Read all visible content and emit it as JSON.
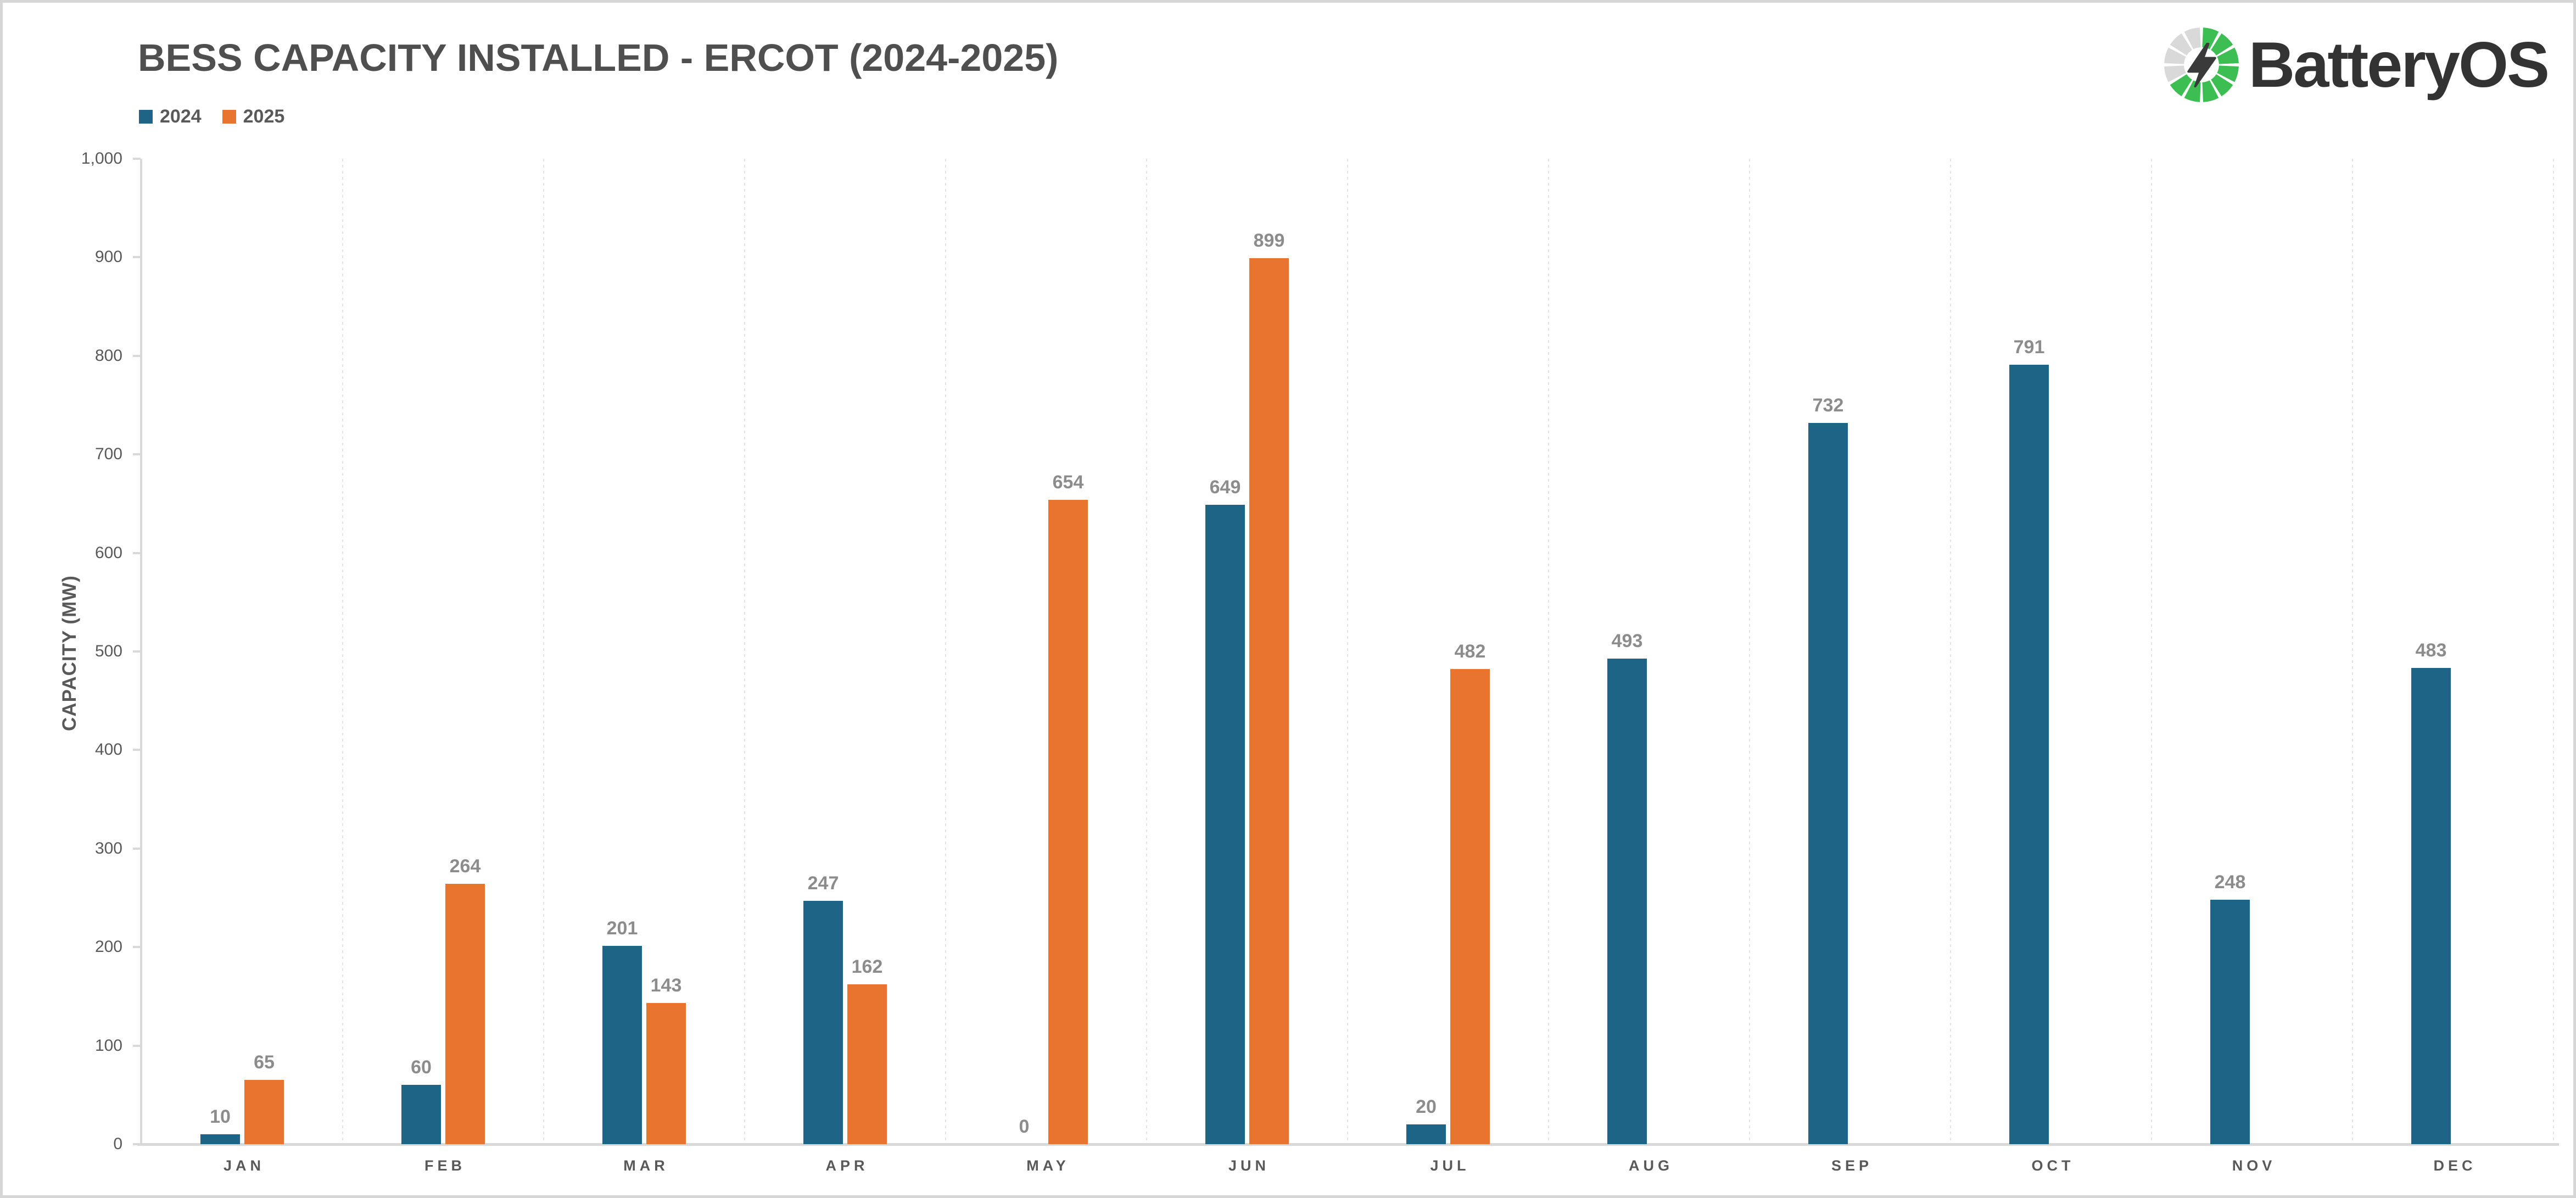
{
  "page": {
    "background": "#ffffff",
    "frame_color": "#d6d6d6"
  },
  "header": {
    "title": "BESS CAPACITY INSTALLED - ERCOT (2024-2025)",
    "title_color": "#4f4f4f"
  },
  "logo": {
    "text": "BatteryOS",
    "text_color": "#333333",
    "ring_green": "#3dbe53",
    "ring_gray": "#d9d9d9",
    "bolt_color": "#3a3a3a",
    "total_segments": 12,
    "gray_segments": 4
  },
  "legend": {
    "items": [
      {
        "label": "2024",
        "color": "#1e6486"
      },
      {
        "label": "2025",
        "color": "#e9742f"
      }
    ]
  },
  "chart_data": {
    "type": "bar",
    "title": "BESS CAPACITY INSTALLED - ERCOT (2024-2025)",
    "categories": [
      "JAN",
      "FEB",
      "MAR",
      "APR",
      "MAY",
      "JUN",
      "JUL",
      "AUG",
      "SEP",
      "OCT",
      "NOV",
      "DEC"
    ],
    "series": [
      {
        "name": "2024",
        "color": "#1e6486",
        "values": [
          10,
          60,
          201,
          247,
          0,
          649,
          20,
          493,
          732,
          791,
          248,
          483
        ]
      },
      {
        "name": "2025",
        "color": "#e9742f",
        "values": [
          65,
          264,
          143,
          162,
          654,
          899,
          482,
          null,
          null,
          null,
          null,
          null
        ]
      }
    ],
    "xlabel": "",
    "ylabel": "CAPACITY (MW)",
    "ylim": [
      0,
      1000
    ],
    "ytick_step": 100,
    "ytick_labels": [
      "0",
      "100",
      "200",
      "300",
      "400",
      "500",
      "600",
      "700",
      "800",
      "900",
      "1,000"
    ],
    "grid": "vertical dotted separators between month groups",
    "legend_position": "top-left",
    "value_labels": true,
    "value_label_color": "#8c8c8c",
    "axis_text_color": "#595959",
    "axis_line_color": "#d9d9d9",
    "gridline_color": "#e4e4e4"
  }
}
